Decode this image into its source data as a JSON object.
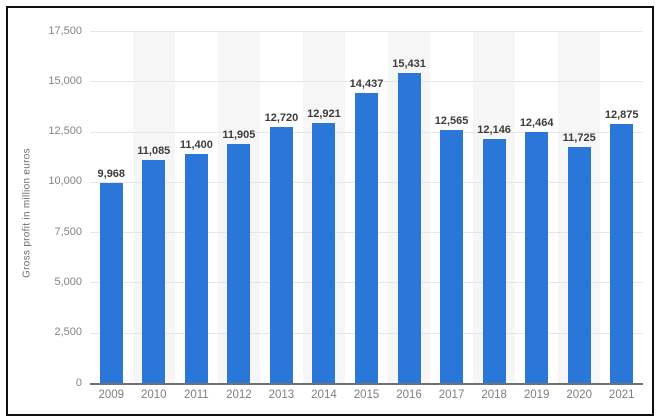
{
  "frame": {
    "border_color": "#0f0f0f",
    "background": "#ffffff"
  },
  "chart_data": {
    "type": "bar",
    "title": "",
    "xlabel": "",
    "ylabel": "Gross profit in million euros",
    "categories": [
      "2009",
      "2010",
      "2011",
      "2012",
      "2013",
      "2014",
      "2015",
      "2016",
      "2017",
      "2018",
      "2019",
      "2020",
      "2021"
    ],
    "values": [
      9968,
      11085,
      11400,
      11905,
      12720,
      12921,
      14437,
      15431,
      12565,
      12146,
      12464,
      11725,
      12875
    ],
    "value_labels": [
      "9,968",
      "11,085",
      "11,400",
      "11,905",
      "12,720",
      "12,921",
      "14,437",
      "15,431",
      "12,565",
      "12,146",
      "12,464",
      "11,725",
      "12,875"
    ],
    "y_ticks": [
      {
        "label": "17,500",
        "value": 17500
      },
      {
        "label": "15,000",
        "value": 15000
      },
      {
        "label": "12,500",
        "value": 12500
      },
      {
        "label": "10,000",
        "value": 10000
      },
      {
        "label": "7,500",
        "value": 7500
      },
      {
        "label": "5,000",
        "value": 5000
      },
      {
        "label": "2,500",
        "value": 2500
      },
      {
        "label": "0",
        "value": 0
      }
    ],
    "ylim": [
      0,
      17500
    ],
    "grid": true,
    "legend": "none",
    "band_pattern": "alternate-gray-on-even-years",
    "colors": {
      "bar": "#2a77d9",
      "plot_band": "#f6f6f6",
      "gridline": "#e6e6e6",
      "axis_line": "#6e7072",
      "tick_label": "#848484",
      "data_label": "#3d3d3d",
      "axis_title": "#6d6d6d",
      "frame_border": "#0f0f0f"
    }
  }
}
